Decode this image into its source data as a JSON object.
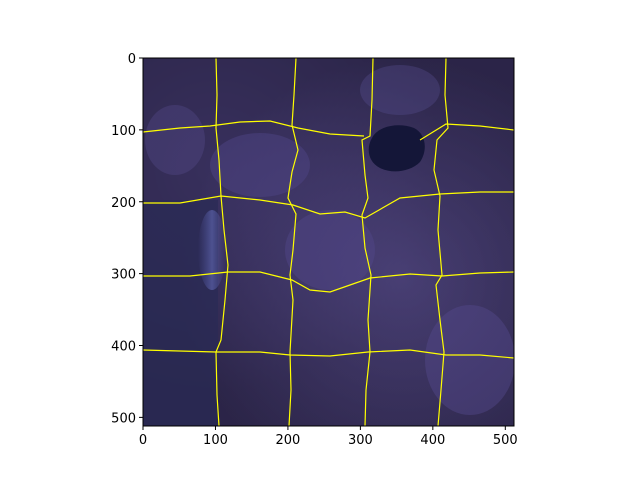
{
  "figure": {
    "x_ticks": [
      0,
      100,
      200,
      300,
      400,
      500
    ],
    "y_ticks": [
      0,
      100,
      200,
      300,
      400,
      500
    ],
    "x_range": [
      0,
      512
    ],
    "y_range": [
      0,
      512
    ],
    "y_inverted": true,
    "image": {
      "description_colors": {
        "base": "#2e2750",
        "bright": "#6b5f9c",
        "lake": "#141638",
        "haze": "#5a62b4"
      },
      "boundary_color": "#ffff00",
      "segments_grid": "approximately 5 columns x 5 rows of superpixel regions"
    }
  }
}
